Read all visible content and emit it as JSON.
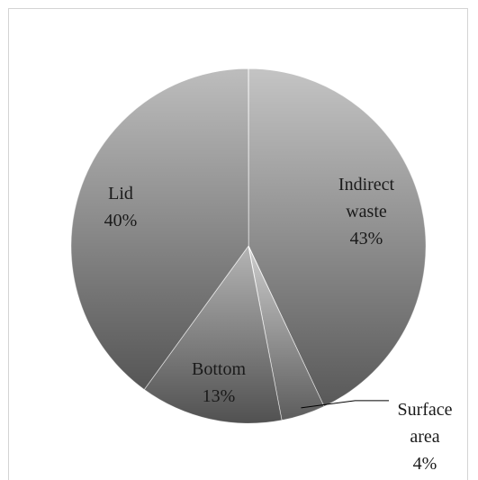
{
  "chart_data": {
    "type": "pie",
    "categories": [
      "Indirect waste",
      "Surface area",
      "Bottom",
      "Lid"
    ],
    "values": [
      43,
      4,
      13,
      40
    ],
    "value_labels": [
      "43%",
      "4%",
      "13%",
      "40%"
    ],
    "colors": [
      "#c4c4c4",
      "#cdcdcd",
      "#b4b4b4",
      "#bdbdbd"
    ]
  }
}
